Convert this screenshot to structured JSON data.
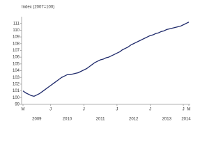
{
  "chart_data": {
    "type": "line",
    "y_label": "Index (2007=100)",
    "categories": [
      "M",
      null,
      null,
      null,
      null,
      null,
      null,
      null,
      null,
      null,
      "J",
      null,
      null,
      null,
      null,
      null,
      null,
      null,
      null,
      null,
      null,
      null,
      "J",
      null,
      null,
      null,
      null,
      null,
      null,
      null,
      null,
      null,
      null,
      null,
      "J",
      null,
      null,
      null,
      null,
      null,
      null,
      null,
      null,
      null,
      null,
      null,
      "J",
      null,
      null,
      null,
      null,
      null,
      null,
      null,
      null,
      null,
      null,
      null,
      "J",
      null,
      "M"
    ],
    "years": [
      "2009",
      "2010",
      "2011",
      "2012",
      "2013",
      "2014"
    ],
    "values": [
      101.0,
      100.7,
      100.5,
      100.3,
      100.2,
      100.4,
      100.6,
      100.9,
      101.2,
      101.5,
      101.8,
      102.1,
      102.4,
      102.7,
      103.0,
      103.2,
      103.4,
      103.4,
      103.5,
      103.6,
      103.7,
      103.9,
      104.1,
      104.3,
      104.6,
      104.9,
      105.2,
      105.4,
      105.6,
      105.7,
      105.9,
      106.0,
      106.2,
      106.4,
      106.6,
      106.8,
      107.1,
      107.3,
      107.5,
      107.8,
      108.0,
      108.2,
      108.4,
      108.6,
      108.8,
      109.0,
      109.2,
      109.3,
      109.5,
      109.6,
      109.8,
      109.9,
      110.1,
      110.2,
      110.3,
      110.4,
      110.5,
      110.6,
      110.8,
      111.0,
      111.2
    ],
    "color": "#1f2a6b",
    "ylim": [
      99,
      112
    ],
    "yticks": [
      99,
      100,
      101,
      102,
      103,
      104,
      105,
      106,
      107,
      108,
      109,
      110,
      111
    ],
    "grid": false
  }
}
